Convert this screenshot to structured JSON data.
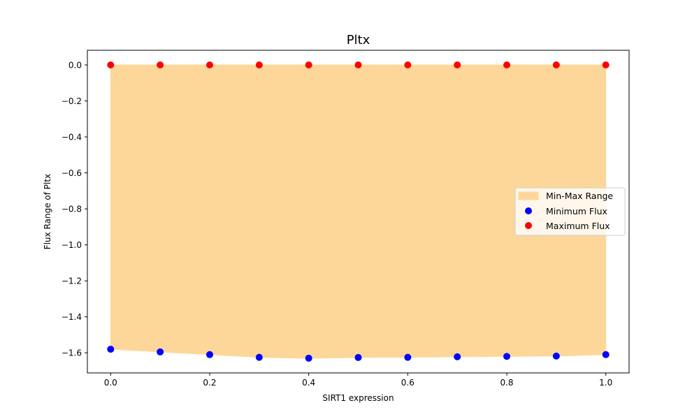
{
  "chart_data": {
    "type": "scatter",
    "title": "Pltx",
    "xlabel": "SIRT1 expression",
    "ylabel": "Flux Range of Pltx",
    "x": [
      0.0,
      0.1,
      0.2,
      0.3,
      0.4,
      0.5,
      0.6,
      0.7,
      0.8,
      0.9,
      1.0
    ],
    "series": [
      {
        "name": "Min-Max Range",
        "kind": "fill_between",
        "lower": [
          -1.58,
          -1.595,
          -1.61,
          -1.625,
          -1.63,
          -1.626,
          -1.625,
          -1.622,
          -1.62,
          -1.618,
          -1.61
        ],
        "upper": [
          0.0,
          0.0,
          0.0,
          0.0,
          0.0,
          0.0,
          0.0,
          0.0,
          0.0,
          0.0,
          0.0
        ],
        "color": "#fdd79a"
      },
      {
        "name": "Minimum Flux",
        "kind": "scatter",
        "values": [
          -1.58,
          -1.595,
          -1.61,
          -1.625,
          -1.63,
          -1.626,
          -1.625,
          -1.622,
          -1.62,
          -1.618,
          -1.61
        ],
        "color": "#0000ff"
      },
      {
        "name": "Maximum Flux",
        "kind": "scatter",
        "values": [
          0.0,
          0.0,
          0.0,
          0.0,
          0.0,
          0.0,
          0.0,
          0.0,
          0.0,
          0.0,
          0.0
        ],
        "color": "#ff0000"
      }
    ],
    "xlim": [
      -0.047,
      1.047
    ],
    "ylim": [
      -1.7117,
      0.0815
    ],
    "xticks": [
      0.0,
      0.2,
      0.4,
      0.6,
      0.8,
      1.0
    ],
    "xtick_labels": [
      "0.0",
      "0.2",
      "0.4",
      "0.6",
      "0.8",
      "1.0"
    ],
    "yticks": [
      0.0,
      -0.2,
      -0.4,
      -0.6,
      -0.8,
      -1.0,
      -1.2,
      -1.4,
      -1.6
    ],
    "ytick_labels": [
      "0.0",
      "−0.2",
      "−0.4",
      "−0.6",
      "−0.8",
      "−1.0",
      "−1.2",
      "−1.4",
      "−1.6"
    ],
    "grid": false,
    "legend_position": "center-right"
  }
}
